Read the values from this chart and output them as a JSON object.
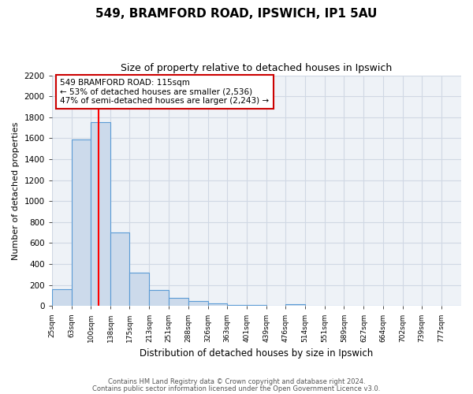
{
  "title": "549, BRAMFORD ROAD, IPSWICH, IP1 5AU",
  "subtitle": "Size of property relative to detached houses in Ipswich",
  "xlabel": "Distribution of detached houses by size in Ipswich",
  "ylabel": "Number of detached properties",
  "bar_labels": [
    "25sqm",
    "63sqm",
    "100sqm",
    "138sqm",
    "175sqm",
    "213sqm",
    "251sqm",
    "288sqm",
    "326sqm",
    "363sqm",
    "401sqm",
    "439sqm",
    "476sqm",
    "514sqm",
    "551sqm",
    "589sqm",
    "627sqm",
    "664sqm",
    "702sqm",
    "739sqm",
    "777sqm"
  ],
  "bar_values": [
    160,
    1590,
    1755,
    700,
    315,
    155,
    80,
    45,
    25,
    10,
    10,
    0,
    15,
    0,
    0,
    0,
    0,
    0,
    0,
    0,
    0
  ],
  "bin_edges": [
    25,
    63,
    100,
    138,
    175,
    213,
    251,
    288,
    326,
    363,
    401,
    439,
    476,
    514,
    551,
    589,
    627,
    664,
    702,
    739,
    777
  ],
  "bar_color": "#ccdaeb",
  "bar_edge_color": "#5b9bd5",
  "red_line_x": 115,
  "ylim": [
    0,
    2200
  ],
  "yticks": [
    0,
    200,
    400,
    600,
    800,
    1000,
    1200,
    1400,
    1600,
    1800,
    2000,
    2200
  ],
  "annotation_lines": [
    "549 BRAMFORD ROAD: 115sqm",
    "← 53% of detached houses are smaller (2,536)",
    "47% of semi-detached houses are larger (2,243) →"
  ],
  "footer_line1": "Contains HM Land Registry data © Crown copyright and database right 2024.",
  "footer_line2": "Contains public sector information licensed under the Open Government Licence v3.0.",
  "background_color": "#ffffff",
  "plot_background_color": "#eef2f7",
  "grid_color": "#d0d8e4",
  "ann_box_edge_color": "#cc0000"
}
